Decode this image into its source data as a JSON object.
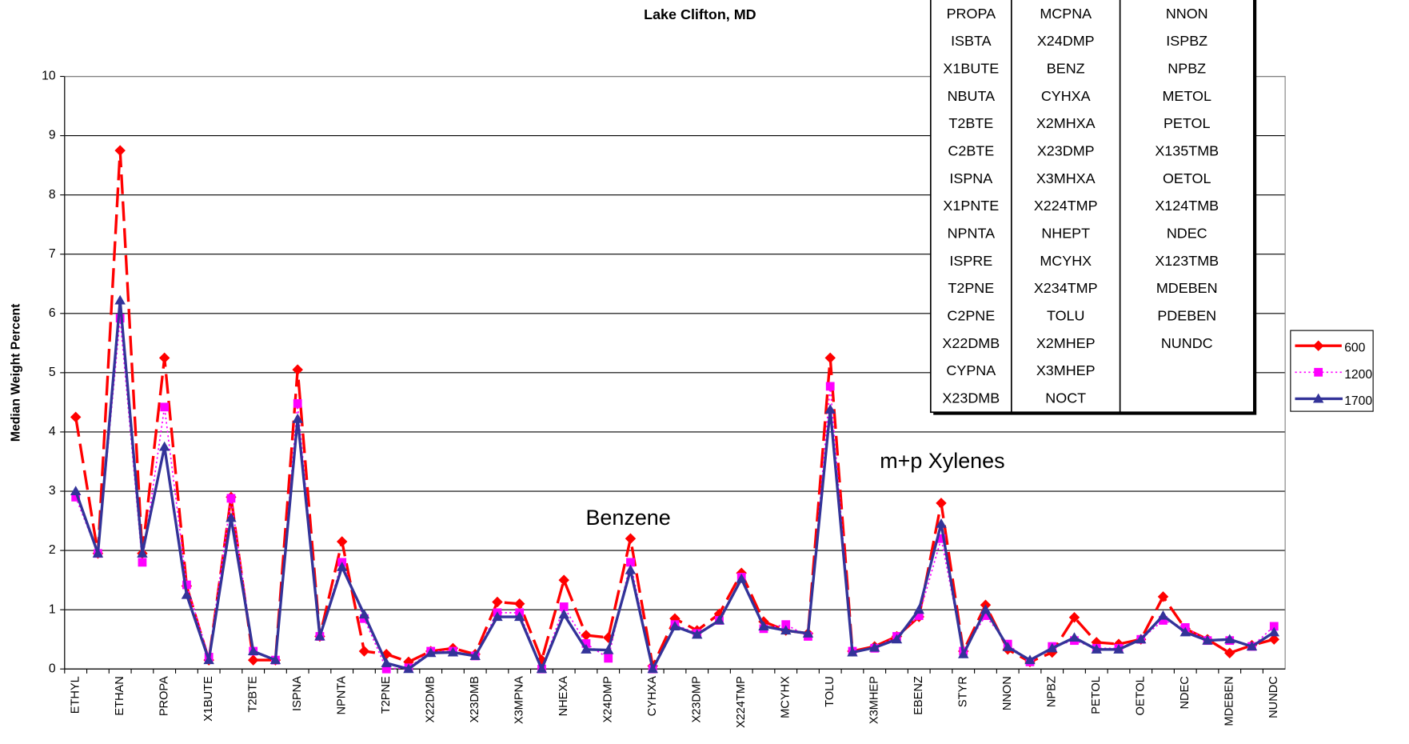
{
  "chart_data": {
    "type": "line",
    "title": "Lake Clifton, MD",
    "y_label": "Median Weight Percent",
    "annotations": [
      "Benzene",
      "m+p Xylenes"
    ],
    "categories": [
      "ETHYL",
      null,
      "ETHAN",
      null,
      "PROPA",
      null,
      "X1BUTE",
      null,
      "T2BTE",
      null,
      "ISPNA",
      null,
      "NPNTA",
      null,
      "T2PNE",
      null,
      "X22DMB",
      null,
      "X23DMB",
      null,
      "X3MPNA",
      null,
      "NHEXA",
      null,
      "X24DMP",
      null,
      "CYHXA",
      null,
      "X23DMP",
      null,
      "X224TMP",
      null,
      "MCYHX",
      null,
      "TOLU",
      null,
      "X3MHEP",
      null,
      "EBENZ",
      null,
      "STYR",
      null,
      "NNON",
      null,
      "NPBZ",
      null,
      "PETOL",
      null,
      "OETOL",
      null,
      "NDEC",
      null,
      "MDEBEN",
      null,
      "NUNDC"
    ],
    "series": [
      {
        "name": "600",
        "color": "#ff0000",
        "marker": "diamond",
        "line": "dashed",
        "values": [
          4.25,
          1.95,
          8.75,
          1.95,
          5.25,
          1.4,
          0.15,
          2.9,
          0.15,
          0.15,
          5.05,
          0.55,
          2.15,
          0.3,
          0.25,
          0.12,
          0.3,
          0.35,
          0.25,
          1.13,
          1.1,
          0.15,
          1.5,
          0.57,
          0.53,
          2.2,
          0.05,
          0.85,
          0.65,
          0.93,
          1.62,
          0.8,
          0.65,
          0.6,
          5.25,
          0.3,
          0.38,
          0.55,
          0.88,
          2.8,
          0.3,
          1.08,
          0.33,
          0.12,
          0.28,
          0.87,
          0.45,
          0.42,
          0.5,
          1.22,
          0.68,
          0.5,
          0.27,
          0.4,
          0.5
        ]
      },
      {
        "name": "1200",
        "color": "#ff00ff",
        "marker": "square",
        "line": "dotted",
        "values": [
          2.9,
          1.95,
          5.92,
          1.8,
          4.42,
          1.42,
          0.2,
          2.88,
          0.3,
          0.15,
          4.48,
          0.55,
          1.8,
          0.85,
          0.0,
          0.02,
          0.3,
          0.3,
          0.22,
          0.95,
          0.95,
          0.0,
          1.05,
          0.43,
          0.18,
          1.8,
          0.0,
          0.75,
          0.6,
          0.82,
          1.55,
          0.68,
          0.75,
          0.55,
          4.77,
          0.3,
          0.35,
          0.55,
          0.9,
          2.2,
          0.3,
          0.9,
          0.42,
          0.12,
          0.38,
          0.48,
          0.35,
          0.35,
          0.5,
          0.82,
          0.7,
          0.48,
          0.48,
          0.38,
          0.72
        ]
      },
      {
        "name": "1700",
        "color": "#333399",
        "marker": "triangle",
        "line": "solid",
        "values": [
          3.0,
          1.95,
          6.22,
          1.95,
          3.75,
          1.25,
          0.15,
          2.55,
          0.3,
          0.15,
          4.22,
          0.55,
          1.72,
          0.92,
          0.1,
          0.0,
          0.27,
          0.28,
          0.22,
          0.88,
          0.88,
          0.0,
          0.92,
          0.33,
          0.32,
          1.67,
          0.0,
          0.72,
          0.58,
          0.82,
          1.52,
          0.72,
          0.65,
          0.6,
          4.38,
          0.28,
          0.36,
          0.5,
          1.0,
          2.45,
          0.25,
          1.0,
          0.37,
          0.15,
          0.35,
          0.53,
          0.33,
          0.33,
          0.5,
          0.9,
          0.62,
          0.48,
          0.5,
          0.38,
          0.62
        ]
      }
    ],
    "ylim": [
      0,
      10
    ],
    "yticks": [
      0,
      1,
      2,
      3,
      4,
      5,
      6,
      7,
      8,
      9,
      10
    ],
    "grid": true,
    "legend": "right",
    "table": {
      "columns": [
        [
          "PROPA",
          "ISBTA",
          "X1BUTE",
          "NBUTA",
          "T2BTE",
          "C2BTE",
          "ISPNA",
          "X1PNTE",
          "NPNTA",
          "ISPRE",
          "T2PNE",
          "C2PNE",
          "X22DMB",
          "CYPNA",
          "X23DMB"
        ],
        [
          "MCPNA",
          "X24DMP",
          "BENZ",
          "CYHXA",
          "X2MHXA",
          "X23DMP",
          "X3MHXA",
          "X224TMP",
          "NHEPT",
          "MCYHX",
          "X234TMP",
          "TOLU",
          "X2MHEP",
          "X3MHEP",
          "NOCT"
        ],
        [
          "NNON",
          "ISPBZ",
          "NPBZ",
          "METOL",
          "PETOL",
          "X135TMB",
          "OETOL",
          "X124TMB",
          "NDEC",
          "X123TMB",
          "MDEBEN",
          "PDEBEN",
          "NUNDC"
        ]
      ]
    }
  }
}
